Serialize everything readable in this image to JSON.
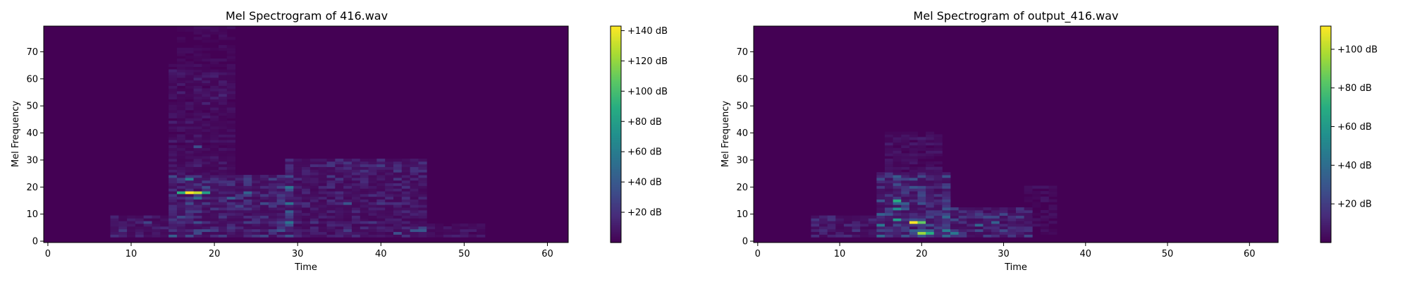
{
  "chart_data": [
    {
      "type": "heatmap",
      "title": "Mel Spectrogram of 416.wav",
      "xlabel": "Time",
      "ylabel": "Mel Frequency",
      "xlim": [
        -0.5,
        62.5
      ],
      "ylim": [
        -0.5,
        79.5
      ],
      "xticks": [
        0,
        10,
        20,
        30,
        40,
        50,
        60
      ],
      "yticks": [
        0,
        10,
        20,
        30,
        40,
        50,
        60,
        70
      ],
      "colormap": "viridis",
      "grid": false,
      "colorbar": {
        "min": 0,
        "max": 143,
        "ticks": [
          20,
          40,
          60,
          80,
          100,
          120,
          140
        ],
        "tick_labels": [
          "+20 dB",
          "+40 dB",
          "+60 dB",
          "+80 dB",
          "+100 dB",
          "+120 dB",
          "+140 dB"
        ]
      },
      "frames": 63,
      "mel_bins": 80,
      "energy_regions": [
        {
          "time": [
            8,
            16
          ],
          "mel": [
            2,
            9
          ],
          "level_db": 18
        },
        {
          "time": [
            15,
            29
          ],
          "mel": [
            2,
            24
          ],
          "level_db": 30
        },
        {
          "time": [
            15,
            22
          ],
          "mel": [
            25,
            65
          ],
          "level_db": 12
        },
        {
          "time": [
            16,
            22
          ],
          "mel": [
            66,
            79
          ],
          "level_db": 6
        },
        {
          "time": [
            29,
            45
          ],
          "mel": [
            2,
            30
          ],
          "level_db": 20
        },
        {
          "time": [
            44,
            52
          ],
          "mel": [
            2,
            6
          ],
          "level_db": 12
        }
      ],
      "peaks": [
        {
          "time": 17,
          "mel": 18,
          "value_db": 143
        },
        {
          "time": 18,
          "mel": 18,
          "value_db": 130
        },
        {
          "time": 16,
          "mel": 18,
          "value_db": 90
        },
        {
          "time": 19,
          "mel": 18,
          "value_db": 80
        },
        {
          "time": 17,
          "mel": 23,
          "value_db": 60
        },
        {
          "time": 18,
          "mel": 16,
          "value_db": 50
        },
        {
          "time": 24,
          "mel": 18,
          "value_db": 45
        },
        {
          "time": 22,
          "mel": 16,
          "value_db": 42
        },
        {
          "time": 18,
          "mel": 35,
          "value_db": 35
        },
        {
          "time": 36,
          "mel": 14,
          "value_db": 38
        },
        {
          "time": 42,
          "mel": 3,
          "value_db": 35
        },
        {
          "time": 12,
          "mel": 7,
          "value_db": 30
        },
        {
          "time": 18,
          "mel": 3,
          "value_db": 32
        }
      ]
    },
    {
      "type": "heatmap",
      "title": "Mel Spectrogram of output_416.wav",
      "xlabel": "Time",
      "ylabel": "Mel Frequency",
      "xlim": [
        -0.5,
        63.5
      ],
      "ylim": [
        -0.5,
        79.5
      ],
      "xticks": [
        0,
        10,
        20,
        30,
        40,
        50,
        60
      ],
      "yticks": [
        0,
        10,
        20,
        30,
        40,
        50,
        60,
        70
      ],
      "colormap": "viridis",
      "grid": false,
      "colorbar": {
        "min": 0,
        "max": 112,
        "ticks": [
          20,
          40,
          60,
          80,
          100
        ],
        "tick_labels": [
          "+20 dB",
          "+40 dB",
          "+60 dB",
          "+80 dB",
          "+100 dB"
        ]
      },
      "frames": 64,
      "mel_bins": 80,
      "energy_regions": [
        {
          "time": [
            7,
            15
          ],
          "mel": [
            2,
            9
          ],
          "level_db": 14
        },
        {
          "time": [
            15,
            23
          ],
          "mel": [
            2,
            25
          ],
          "level_db": 28
        },
        {
          "time": [
            16,
            22
          ],
          "mel": [
            26,
            40
          ],
          "level_db": 8
        },
        {
          "time": [
            23,
            33
          ],
          "mel": [
            2,
            12
          ],
          "level_db": 20
        },
        {
          "time": [
            33,
            36
          ],
          "mel": [
            2,
            20
          ],
          "level_db": 6
        }
      ],
      "peaks": [
        {
          "time": 19,
          "mel": 7,
          "value_db": 112
        },
        {
          "time": 20,
          "mel": 3,
          "value_db": 95
        },
        {
          "time": 20,
          "mel": 7,
          "value_db": 85
        },
        {
          "time": 17,
          "mel": 15,
          "value_db": 70
        },
        {
          "time": 17,
          "mel": 8,
          "value_db": 62
        },
        {
          "time": 21,
          "mel": 3,
          "value_db": 70
        },
        {
          "time": 17,
          "mel": 12,
          "value_db": 55
        },
        {
          "time": 24,
          "mel": 3,
          "value_db": 45
        },
        {
          "time": 27,
          "mel": 6,
          "value_db": 38
        },
        {
          "time": 29,
          "mel": 7,
          "value_db": 35
        }
      ]
    }
  ]
}
